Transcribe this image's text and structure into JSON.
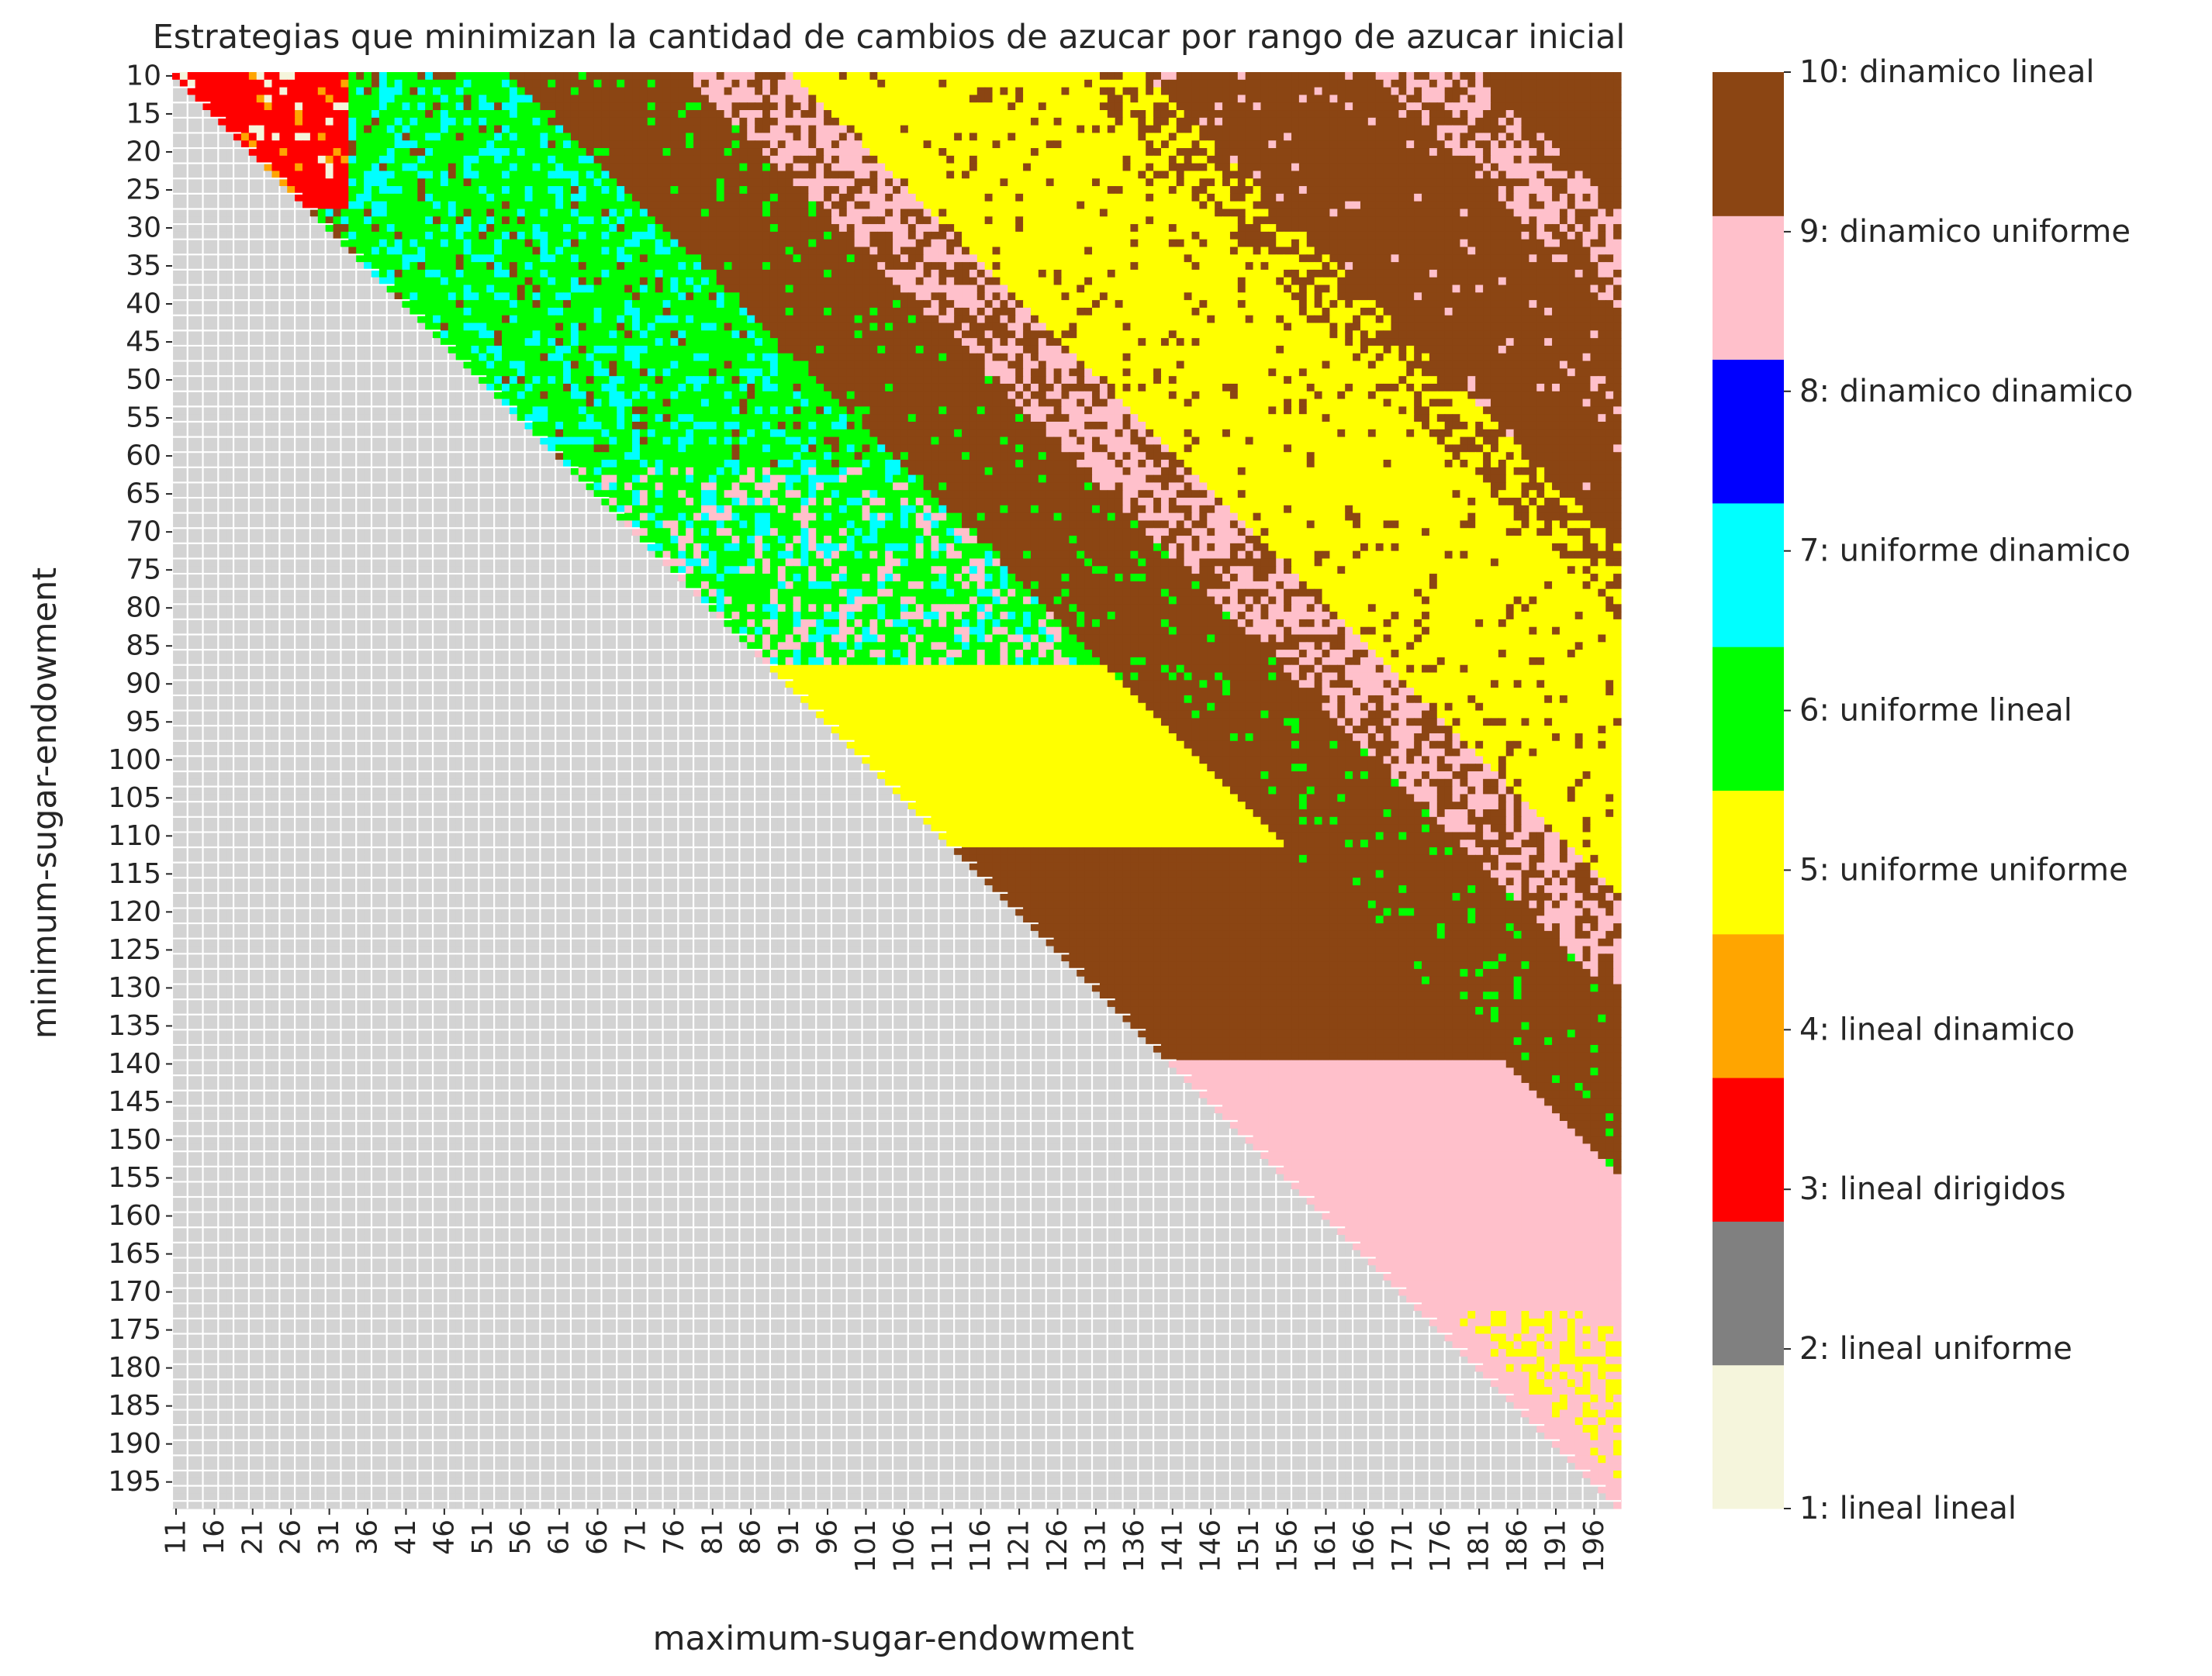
{
  "chart_data": {
    "type": "heatmap",
    "title": "Estrategias que minimizan la cantidad de cambios de azucar por rango de azucar inicial",
    "xlabel": "maximum-sugar-endowment",
    "ylabel": "minimum-sugar-endowment",
    "x_range": [
      11,
      199
    ],
    "y_range": [
      10,
      198
    ],
    "xticks": [
      "11",
      "16",
      "21",
      "26",
      "31",
      "36",
      "41",
      "46",
      "51",
      "56",
      "61",
      "66",
      "71",
      "76",
      "81",
      "86",
      "91",
      "96",
      "101",
      "106",
      "111",
      "116",
      "121",
      "126",
      "131",
      "136",
      "141",
      "146",
      "151",
      "156",
      "161",
      "166",
      "171",
      "176",
      "181",
      "186",
      "191",
      "196"
    ],
    "yticks": [
      "10",
      "15",
      "20",
      "25",
      "30",
      "35",
      "40",
      "45",
      "50",
      "55",
      "60",
      "65",
      "70",
      "75",
      "80",
      "85",
      "90",
      "95",
      "100",
      "105",
      "110",
      "115",
      "120",
      "125",
      "130",
      "135",
      "140",
      "145",
      "150",
      "155",
      "160",
      "165",
      "170",
      "175",
      "180",
      "185",
      "190",
      "195"
    ],
    "grid": true,
    "undefined_color": "#d3d3d3",
    "colorbar": [
      {
        "value": 1,
        "label": "1: lineal lineal",
        "color": "#f5f5dc"
      },
      {
        "value": 2,
        "label": "2: lineal uniforme",
        "color": "#808080"
      },
      {
        "value": 3,
        "label": "3: lineal dirigidos",
        "color": "#ff0000"
      },
      {
        "value": 4,
        "label": "4: lineal dinamico",
        "color": "#ffa500"
      },
      {
        "value": 5,
        "label": "5: uniforme uniforme",
        "color": "#ffff00"
      },
      {
        "value": 6,
        "label": "6: uniforme lineal",
        "color": "#00ff00"
      },
      {
        "value": 7,
        "label": "7: uniforme dinamico",
        "color": "#00ffff"
      },
      {
        "value": 8,
        "label": "8: dinamico dinamico",
        "color": "#0000ff"
      },
      {
        "value": 9,
        "label": "9: dinamico uniforme",
        "color": "#ffc0cb"
      },
      {
        "value": 10,
        "label": "10: dinamico lineal",
        "color": "#8b4513"
      }
    ]
  }
}
